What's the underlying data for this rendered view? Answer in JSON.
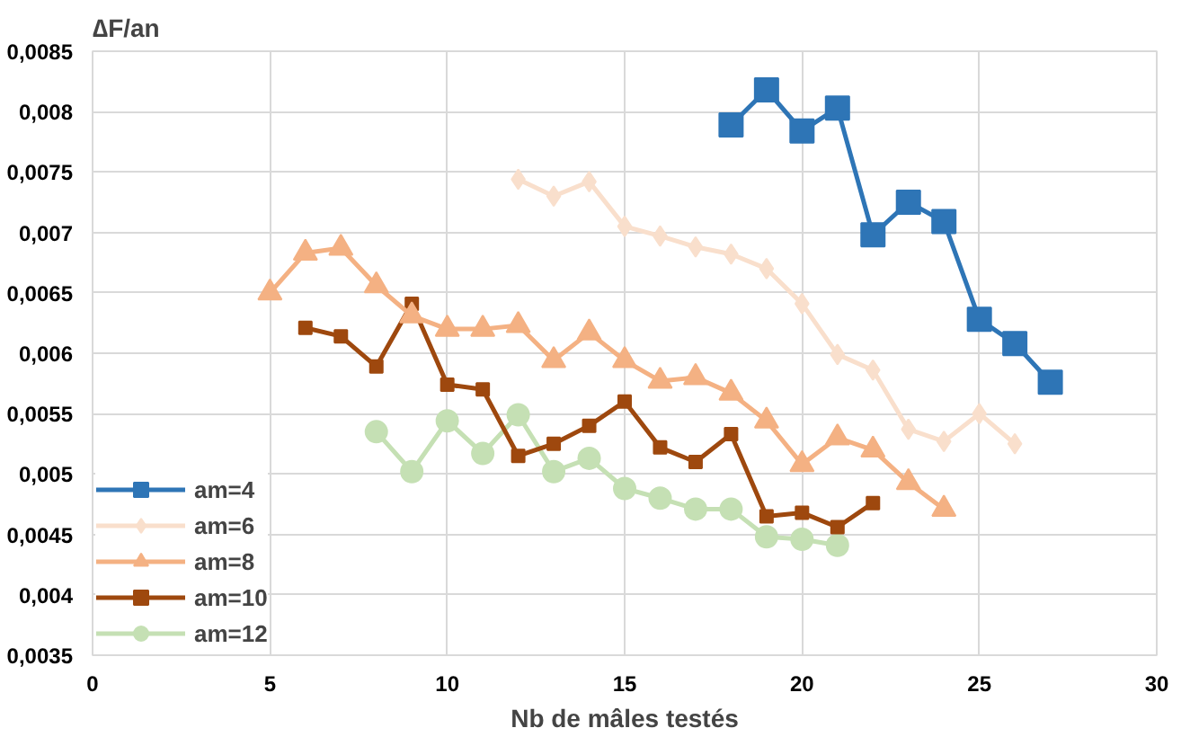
{
  "chart_data": {
    "type": "line",
    "xlabel": "Nb de mâles testés",
    "ylabel": "∆F/an",
    "xlim": [
      0,
      30
    ],
    "xticks": [
      0,
      5,
      10,
      15,
      20,
      25,
      30
    ],
    "ylim": [
      0.0035,
      0.0085
    ],
    "yticks": [
      {
        "value": 0.0035,
        "label": "0,0035"
      },
      {
        "value": 0.004,
        "label": "0,004"
      },
      {
        "value": 0.0045,
        "label": "0,0045"
      },
      {
        "value": 0.005,
        "label": "0,005"
      },
      {
        "value": 0.0055,
        "label": "0,0055"
      },
      {
        "value": 0.006,
        "label": "0,006"
      },
      {
        "value": 0.0065,
        "label": "0,0065"
      },
      {
        "value": 0.007,
        "label": "0,007"
      },
      {
        "value": 0.0075,
        "label": "0,0075"
      },
      {
        "value": 0.008,
        "label": "0,008"
      },
      {
        "value": 0.0085,
        "label": "0,0085"
      }
    ],
    "grid": true,
    "legend": "bottom left",
    "line_style": "solid",
    "series": [
      {
        "name": "am=4",
        "color": "#2e75b6",
        "marker": "square",
        "x": [
          18,
          19,
          20,
          21,
          22,
          23,
          24,
          25,
          26,
          27
        ],
        "values": [
          0.00789,
          0.00818,
          0.00784,
          0.00803,
          0.00698,
          0.00725,
          0.00709,
          0.00628,
          0.00608,
          0.00576
        ]
      },
      {
        "name": "am=6",
        "color": "#f9dfcc",
        "marker": "diamond",
        "x": [
          12,
          13,
          14,
          15,
          16,
          17,
          18,
          19,
          20,
          21,
          22,
          23,
          24,
          25,
          26
        ],
        "values": [
          0.00744,
          0.0073,
          0.00742,
          0.00705,
          0.00697,
          0.00688,
          0.00682,
          0.0067,
          0.00641,
          0.00599,
          0.00586,
          0.00537,
          0.00527,
          0.0055,
          0.00525
        ]
      },
      {
        "name": "am=8",
        "color": "#f4b183",
        "marker": "triangle",
        "x": [
          5,
          6,
          7,
          8,
          9,
          10,
          11,
          12,
          13,
          14,
          15,
          16,
          17,
          18,
          19,
          20,
          21,
          22,
          23,
          24
        ],
        "values": [
          0.0065,
          0.00683,
          0.00687,
          0.00656,
          0.00631,
          0.0062,
          0.0062,
          0.00623,
          0.00594,
          0.00617,
          0.00594,
          0.00577,
          0.0058,
          0.00567,
          0.00544,
          0.00508,
          0.0053,
          0.0052,
          0.00493,
          0.00471
        ]
      },
      {
        "name": "am=10",
        "color": "#9e480e",
        "marker": "square",
        "x": [
          6,
          7,
          8,
          9,
          10,
          11,
          12,
          13,
          14,
          15,
          16,
          17,
          18,
          19,
          20,
          21,
          22
        ],
        "values": [
          0.00621,
          0.00614,
          0.00589,
          0.00641,
          0.00574,
          0.0057,
          0.00515,
          0.00525,
          0.0054,
          0.0056,
          0.00522,
          0.0051,
          0.00533,
          0.00465,
          0.00468,
          0.00456,
          0.00476
        ]
      },
      {
        "name": "am=12",
        "color": "#c5e0b4",
        "marker": "circle",
        "x": [
          8,
          9,
          10,
          11,
          12,
          13,
          14,
          15,
          16,
          17,
          18,
          19,
          20,
          21
        ],
        "values": [
          0.00535,
          0.00502,
          0.00544,
          0.00517,
          0.00549,
          0.00502,
          0.00513,
          0.00488,
          0.0048,
          0.00471,
          0.00471,
          0.00448,
          0.00446,
          0.00441
        ]
      }
    ]
  }
}
